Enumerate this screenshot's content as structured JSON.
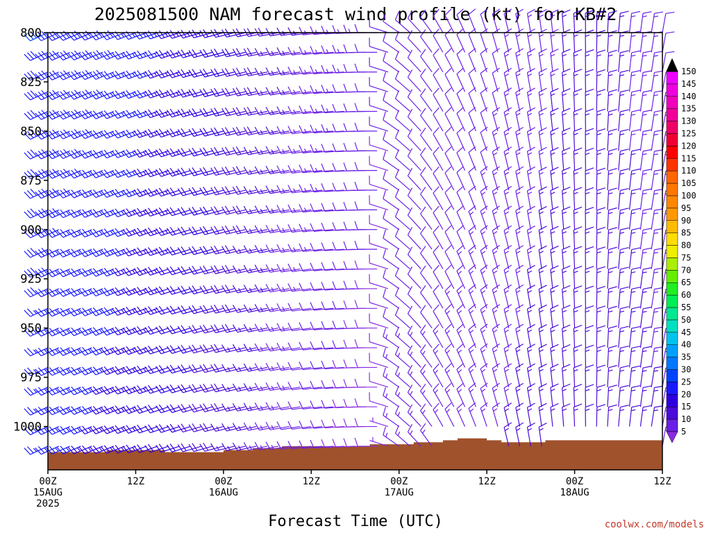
{
  "chart_data": {
    "type": "wind-barb-time-height",
    "title": "2025081500 NAM forecast wind profile (kt) for KB#2",
    "xlabel": "Forecast Time (UTC)",
    "ylabel": "",
    "credit": "coolwx.com/models",
    "y_axis": {
      "inverted": true,
      "range": [
        800,
        1022
      ],
      "ticks": [
        "800",
        "825",
        "850",
        "875",
        "900",
        "925",
        "950",
        "975",
        "1000"
      ]
    },
    "x_axis": {
      "range_hours": [
        0,
        84
      ],
      "ticks": [
        {
          "hour": 0,
          "lines": [
            "00Z",
            "15AUG",
            "2025"
          ]
        },
        {
          "hour": 12,
          "lines": [
            "12Z"
          ]
        },
        {
          "hour": 24,
          "lines": [
            "00Z",
            "16AUG"
          ]
        },
        {
          "hour": 36,
          "lines": [
            "12Z"
          ]
        },
        {
          "hour": 48,
          "lines": [
            "00Z",
            "17AUG"
          ]
        },
        {
          "hour": 60,
          "lines": [
            "12Z"
          ]
        },
        {
          "hour": 72,
          "lines": [
            "00Z",
            "18AUG"
          ]
        },
        {
          "hour": 84,
          "lines": [
            "12Z"
          ]
        }
      ]
    },
    "wind_levels_mb": [
      800,
      810,
      820,
      830,
      840,
      850,
      860,
      870,
      880,
      890,
      900,
      910,
      920,
      930,
      940,
      950,
      960,
      970,
      980,
      990,
      1000,
      1010,
      1020
    ],
    "wind_keyframes": [
      {
        "hour": 0,
        "dir_deg": 245,
        "speed_kt": 30
      },
      {
        "hour": 10,
        "dir_deg": 248,
        "speed_kt": 28
      },
      {
        "hour": 24,
        "dir_deg": 255,
        "speed_kt": 22
      },
      {
        "hour": 36,
        "dir_deg": 262,
        "speed_kt": 15
      },
      {
        "hour": 45,
        "dir_deg": 270,
        "speed_kt": 12
      },
      {
        "hour": 48,
        "dir_deg": 305,
        "speed_kt": 10
      },
      {
        "hour": 54,
        "dir_deg": 330,
        "speed_kt": 10
      },
      {
        "hour": 62,
        "dir_deg": 345,
        "speed_kt": 12
      },
      {
        "hour": 70,
        "dir_deg": 355,
        "speed_kt": 15
      },
      {
        "hour": 78,
        "dir_deg": 5,
        "speed_kt": 15
      },
      {
        "hour": 84,
        "dir_deg": 10,
        "speed_kt": 12
      }
    ],
    "surface_pressure_mb": [
      {
        "hour": 0,
        "p": 1013
      },
      {
        "hour": 8,
        "p": 1012
      },
      {
        "hour": 16,
        "p": 1013
      },
      {
        "hour": 24,
        "p": 1012
      },
      {
        "hour": 28,
        "p": 1011
      },
      {
        "hour": 32,
        "p": 1010
      },
      {
        "hour": 42,
        "p": 1010
      },
      {
        "hour": 44,
        "p": 1009
      },
      {
        "hour": 48,
        "p": 1009
      },
      {
        "hour": 50,
        "p": 1008
      },
      {
        "hour": 54,
        "p": 1007
      },
      {
        "hour": 56,
        "p": 1006
      },
      {
        "hour": 60,
        "p": 1007
      },
      {
        "hour": 62,
        "p": 1008
      },
      {
        "hour": 66,
        "p": 1008
      },
      {
        "hour": 68,
        "p": 1007
      },
      {
        "hour": 82,
        "p": 1007
      },
      {
        "hour": 84,
        "p": 1008
      }
    ],
    "colorbar": {
      "levels": [
        "5",
        "10",
        "15",
        "20",
        "25",
        "30",
        "35",
        "40",
        "45",
        "50",
        "55",
        "60",
        "65",
        "70",
        "75",
        "80",
        "85",
        "90",
        "95",
        "100",
        "105",
        "110",
        "115",
        "120",
        "125",
        "130",
        "135",
        "140",
        "145",
        "150"
      ],
      "colors": [
        "#8a2be2",
        "#6a1fe6",
        "#4b0bd8",
        "#2e00e0",
        "#1a1aff",
        "#0044ff",
        "#0077ff",
        "#00a0ff",
        "#00c4ee",
        "#00e0c0",
        "#00e890",
        "#00ee55",
        "#22ee22",
        "#66ee00",
        "#aaee00",
        "#eeee00",
        "#ffdd00",
        "#ffbb00",
        "#ff9900",
        "#ff8800",
        "#ff7700",
        "#ff6600",
        "#ff3300",
        "#ff0000",
        "#ee0033",
        "#ee0066",
        "#ee0099",
        "#ee00bb",
        "#ee00dd",
        "#ee00ff"
      ]
    }
  }
}
